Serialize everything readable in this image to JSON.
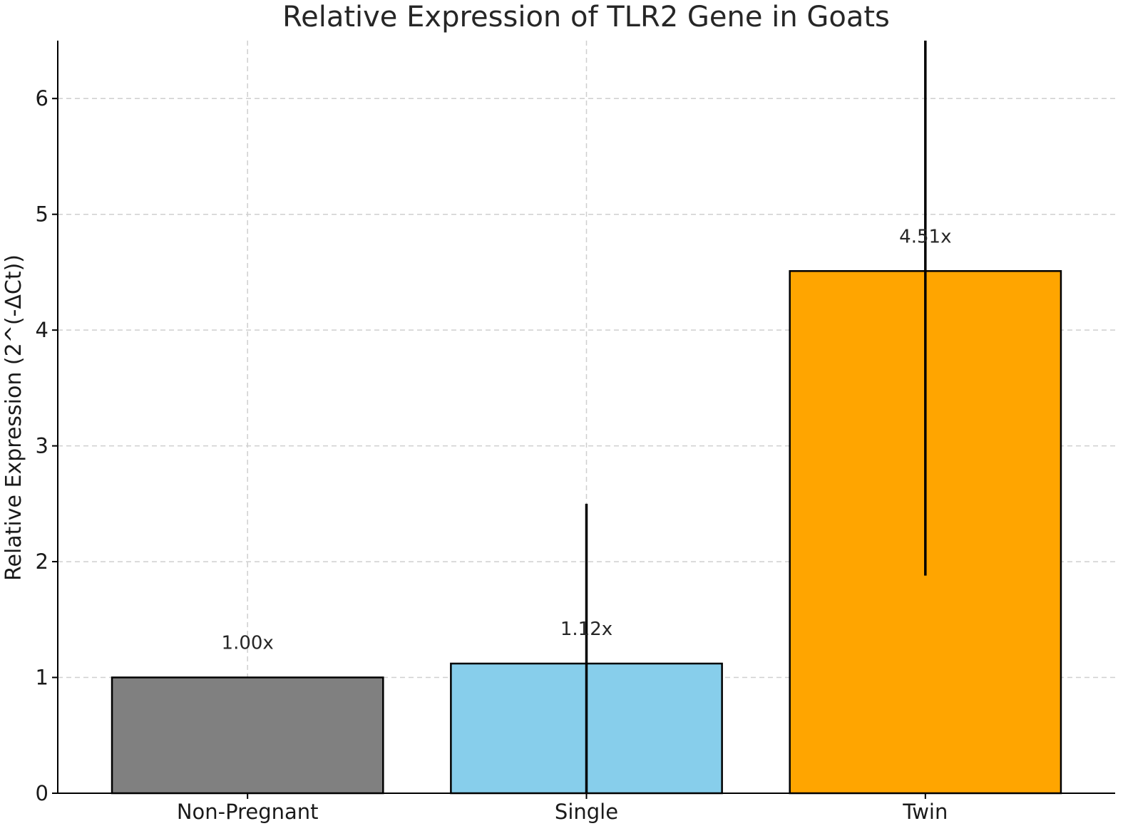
{
  "chart_data": {
    "type": "bar",
    "title": "Relative Expression of TLR2 Gene in Goats",
    "xlabel": "",
    "ylabel": "Relative Expression (2^(-ΔCt))",
    "categories": [
      "Non-Pregnant",
      "Single",
      "Twin"
    ],
    "values": [
      1.0,
      1.12,
      4.51
    ],
    "value_labels": [
      "1.00x",
      "1.12x",
      "4.51x"
    ],
    "error_low": [
      1.0,
      0.0,
      1.88
    ],
    "error_high": [
      1.0,
      2.5,
      6.55
    ],
    "colors": [
      "#808080",
      "#87ceeb",
      "#ffa500"
    ],
    "ylim": [
      0,
      6.5
    ],
    "yticks": [
      0,
      1,
      2,
      3,
      4,
      5,
      6
    ],
    "ytick_labels": [
      "0",
      "1",
      "2",
      "3",
      "4",
      "5",
      "6"
    ],
    "grid": true,
    "legend": "none"
  }
}
